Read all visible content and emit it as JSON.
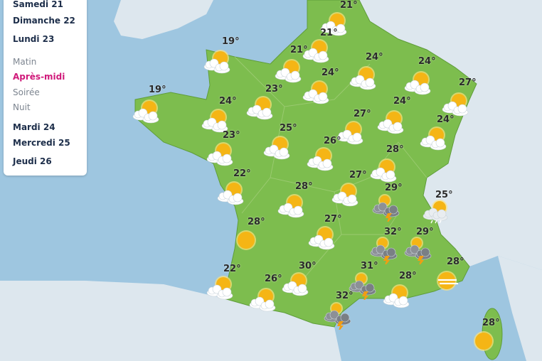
{
  "menu": {
    "days_before": [
      "Samedi 21",
      "Dimanche 22",
      "Lundi 23"
    ],
    "periods": [
      {
        "label": "Matin",
        "active": false
      },
      {
        "label": "Après-midi",
        "active": true
      },
      {
        "label": "Soirée",
        "active": false
      },
      {
        "label": "Nuit",
        "active": false
      }
    ],
    "days_after": [
      "Mardi 24",
      "Mercredi 25",
      "Jeudi 26"
    ]
  },
  "colors": {
    "sea": "#9ec6e0",
    "france": "#7dbd4e",
    "neighbours": "#dde7ee",
    "active_period": "#d0197a",
    "sun": "#f5b515"
  },
  "forecasts": [
    {
      "temp": "21°",
      "icon": "sun-cloud"
    },
    {
      "temp": "21°",
      "icon": "sun-cloud"
    },
    {
      "temp": "19°",
      "icon": "sun-cloud"
    },
    {
      "temp": "21°",
      "icon": "sun-cloud"
    },
    {
      "temp": "24°",
      "icon": "sun-cloud"
    },
    {
      "temp": "24°",
      "icon": "sun-cloud"
    },
    {
      "temp": "24°",
      "icon": "sun-cloud"
    },
    {
      "temp": "27°",
      "icon": "sun-cloud"
    },
    {
      "temp": "19°",
      "icon": "sun-cloud"
    },
    {
      "temp": "24°",
      "icon": "sun-cloud"
    },
    {
      "temp": "23°",
      "icon": "sun-cloud"
    },
    {
      "temp": "24°",
      "icon": "sun-cloud"
    },
    {
      "temp": "27°",
      "icon": "sun-cloud"
    },
    {
      "temp": "24°",
      "icon": "sun-cloud"
    },
    {
      "temp": "25°",
      "icon": "sun-cloud"
    },
    {
      "temp": "23°",
      "icon": "sun-cloud"
    },
    {
      "temp": "26°",
      "icon": "sun-cloud"
    },
    {
      "temp": "28°",
      "icon": "sun-cloud"
    },
    {
      "temp": "22°",
      "icon": "sun-cloud"
    },
    {
      "temp": "27°",
      "icon": "sun-cloud"
    },
    {
      "temp": "28°",
      "icon": "sun-cloud"
    },
    {
      "temp": "29°",
      "icon": "thunderstorm"
    },
    {
      "temp": "25°",
      "icon": "sun-rain"
    },
    {
      "temp": "28°",
      "icon": "sun"
    },
    {
      "temp": "27°",
      "icon": "sun-cloud"
    },
    {
      "temp": "32°",
      "icon": "thunderstorm"
    },
    {
      "temp": "29°",
      "icon": "thunderstorm"
    },
    {
      "temp": "28°",
      "icon": "sun-fog"
    },
    {
      "temp": "22°",
      "icon": "sun-cloud"
    },
    {
      "temp": "30°",
      "icon": "sun-cloud"
    },
    {
      "temp": "31°",
      "icon": "thunderstorm"
    },
    {
      "temp": "26°",
      "icon": "sun-cloud"
    },
    {
      "temp": "28°",
      "icon": "sun-cloud"
    },
    {
      "temp": "32°",
      "icon": "thunderstorm"
    },
    {
      "temp": "28°",
      "icon": "sun"
    }
  ]
}
